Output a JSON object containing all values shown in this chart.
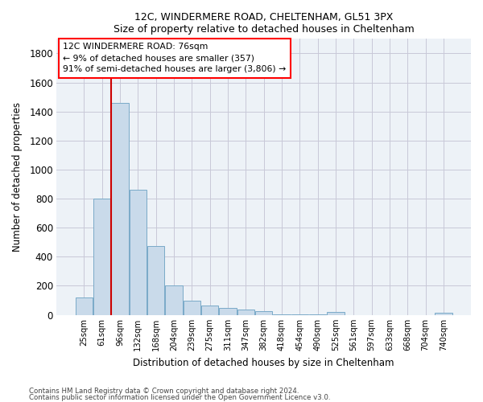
{
  "title1": "12C, WINDERMERE ROAD, CHELTENHAM, GL51 3PX",
  "title2": "Size of property relative to detached houses in Cheltenham",
  "xlabel": "Distribution of detached houses by size in Cheltenham",
  "ylabel": "Number of detached properties",
  "bar_color": "#c9daea",
  "bar_edge_color": "#7aaac8",
  "categories": [
    "25sqm",
    "61sqm",
    "96sqm",
    "132sqm",
    "168sqm",
    "204sqm",
    "239sqm",
    "275sqm",
    "311sqm",
    "347sqm",
    "382sqm",
    "418sqm",
    "454sqm",
    "490sqm",
    "525sqm",
    "561sqm",
    "597sqm",
    "633sqm",
    "668sqm",
    "704sqm",
    "740sqm"
  ],
  "values": [
    120,
    800,
    1460,
    860,
    475,
    200,
    100,
    65,
    45,
    35,
    25,
    5,
    5,
    5,
    20,
    0,
    0,
    0,
    0,
    0,
    15
  ],
  "ylim": [
    0,
    1900
  ],
  "yticks": [
    0,
    200,
    400,
    600,
    800,
    1000,
    1200,
    1400,
    1600,
    1800
  ],
  "vline_x": 1.5,
  "vline_color": "#cc0000",
  "ann_line1": "12C WINDERMERE ROAD: 76sqm",
  "ann_line2": "← 9% of detached houses are smaller (357)",
  "ann_line3": "91% of semi-detached houses are larger (3,806) →",
  "footer1": "Contains HM Land Registry data © Crown copyright and database right 2024.",
  "footer2": "Contains public sector information licensed under the Open Government Licence v3.0.",
  "bg_color": "#edf2f7",
  "grid_color": "#c8c8d8"
}
